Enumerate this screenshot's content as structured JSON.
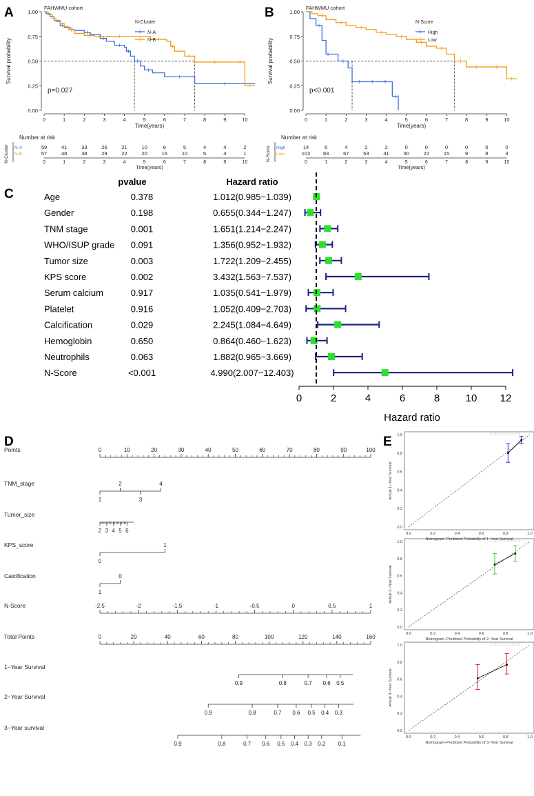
{
  "panel_labels": {
    "A": "A",
    "B": "B",
    "C": "C",
    "D": "D",
    "E": "E"
  },
  "chart_data": [
    {
      "panel": "A",
      "type": "line",
      "subtype": "kaplan-meier",
      "title": "FAHWMU cohort",
      "xlabel": "Time(years)",
      "ylabel": "Survival probability",
      "xlim": [
        0,
        10.5
      ],
      "ylim": [
        0,
        1
      ],
      "xticks": [
        "0",
        "1",
        "2",
        "3",
        "4",
        "5",
        "6",
        "7",
        "8",
        "9",
        "10"
      ],
      "yticks": [
        "0.00",
        "0.25",
        "0.50",
        "0.75",
        "1.00"
      ],
      "legend_title": "N-Cluster",
      "pvalue_text": "p=0.027",
      "median_lines": [
        4.5,
        7.5
      ],
      "series": [
        {
          "name": "N-A",
          "color": "#3A6FD8",
          "x": [
            0,
            0.1,
            0.3,
            0.5,
            0.8,
            1.0,
            1.3,
            1.5,
            2.0,
            2.3,
            2.8,
            3.1,
            3.5,
            4.0,
            4.1,
            4.3,
            4.5,
            4.8,
            5.0,
            5.4,
            6.0,
            7.5,
            10.5
          ],
          "y": [
            1.0,
            0.98,
            0.95,
            0.91,
            0.86,
            0.84,
            0.82,
            0.81,
            0.79,
            0.77,
            0.73,
            0.7,
            0.66,
            0.64,
            0.6,
            0.55,
            0.5,
            0.45,
            0.41,
            0.38,
            0.34,
            0.27,
            0.27
          ]
        },
        {
          "name": "N-B",
          "color": "#F39C1A",
          "x": [
            0,
            0.2,
            0.4,
            0.6,
            0.8,
            1.0,
            1.2,
            1.5,
            2.0,
            2.5,
            3.0,
            4.5,
            5.3,
            6.1,
            6.3,
            6.5,
            7.0,
            7.5,
            9.5,
            10.0,
            10.5
          ],
          "y": [
            1.0,
            0.97,
            0.93,
            0.9,
            0.88,
            0.85,
            0.82,
            0.78,
            0.76,
            0.75,
            0.75,
            0.75,
            0.72,
            0.7,
            0.65,
            0.6,
            0.55,
            0.49,
            0.49,
            0.25,
            0.25
          ]
        }
      ],
      "risk_table": {
        "title": "Number at risk",
        "ylabel": "N-Cluster",
        "xlabel": "Time(years)",
        "times": [
          "0",
          "1",
          "2",
          "3",
          "4",
          "5",
          "6",
          "7",
          "8",
          "9",
          "10"
        ],
        "rows": [
          {
            "label": "N-A",
            "values": [
              "59",
              "41",
              "33",
              "26",
              "21",
              "10",
              "6",
              "5",
              "4",
              "4",
              "2"
            ]
          },
          {
            "label": "N-B",
            "values": [
              "57",
              "48",
              "38",
              "29",
              "22",
              "20",
              "16",
              "10",
              "5",
              "4",
              "1"
            ]
          }
        ]
      }
    },
    {
      "panel": "B",
      "type": "line",
      "subtype": "kaplan-meier",
      "title": "FAHWMU cohort",
      "xlabel": "Time(years)",
      "ylabel": "Survival probability",
      "xlim": [
        0,
        10.5
      ],
      "ylim": [
        0,
        1
      ],
      "xticks": [
        "0",
        "1",
        "2",
        "3",
        "4",
        "5",
        "6",
        "7",
        "8",
        "9",
        "10"
      ],
      "yticks": [
        "0.00",
        "0.25",
        "0.50",
        "0.75",
        "1.00"
      ],
      "legend_title": "N-Score",
      "pvalue_text": "p<0.001",
      "median_lines": [
        2.3,
        7.4
      ],
      "series": [
        {
          "name": "High",
          "color": "#3A6FD8",
          "x": [
            0,
            0.2,
            0.5,
            0.8,
            1.0,
            1.2,
            1.6,
            2.1,
            2.3,
            3.0,
            3.6,
            4.3,
            4.6,
            4.6
          ],
          "y": [
            1.0,
            0.93,
            0.86,
            0.71,
            0.57,
            0.57,
            0.5,
            0.43,
            0.29,
            0.29,
            0.29,
            0.14,
            0.14,
            0.0
          ]
        },
        {
          "name": "Low",
          "color": "#F39C1A",
          "x": [
            0,
            0.3,
            0.6,
            1.0,
            1.5,
            2.0,
            2.5,
            3.0,
            3.5,
            4.0,
            4.5,
            5.0,
            5.5,
            6.0,
            6.5,
            7.0,
            7.4,
            8.0,
            9.0,
            10.0,
            10.5
          ],
          "y": [
            1.0,
            0.98,
            0.96,
            0.92,
            0.89,
            0.86,
            0.84,
            0.82,
            0.79,
            0.77,
            0.75,
            0.72,
            0.69,
            0.65,
            0.63,
            0.57,
            0.5,
            0.44,
            0.44,
            0.32,
            0.32
          ]
        }
      ],
      "risk_table": {
        "title": "Number at risk",
        "ylabel": "N-Score",
        "xlabel": "Time(years)",
        "times": [
          "0",
          "1",
          "2",
          "3",
          "4",
          "5",
          "6",
          "7",
          "8",
          "9",
          "10"
        ],
        "rows": [
          {
            "label": "High",
            "values": [
              "14",
              "6",
              "4",
              "2",
              "2",
              "0",
              "0",
              "0",
              "0",
              "0",
              "0"
            ]
          },
          {
            "label": "Low",
            "values": [
              "102",
              "83",
              "67",
              "53",
              "41",
              "30",
              "22",
              "15",
              "9",
              "8",
              "3"
            ]
          }
        ]
      }
    },
    {
      "panel": "C",
      "type": "forest",
      "col_pvalue": "pvalue",
      "col_hr": "Hazard ratio",
      "xlabel": "Hazard ratio",
      "xlim": [
        0,
        12
      ],
      "xticks": [
        "0",
        "2",
        "4",
        "6",
        "8",
        "10",
        "12"
      ],
      "ref_line": 1,
      "rows": [
        {
          "label": "Age",
          "pvalue": "0.378",
          "hr_text": "1.012(0.985−1.039)",
          "hr": 1.012,
          "lo": 0.985,
          "hi": 1.039
        },
        {
          "label": "Gender",
          "pvalue": "0.198",
          "hr_text": "0.655(0.344−1.247)",
          "hr": 0.655,
          "lo": 0.344,
          "hi": 1.247
        },
        {
          "label": "TNM stage",
          "pvalue": "0.001",
          "hr_text": "1.651(1.214−2.247)",
          "hr": 1.651,
          "lo": 1.214,
          "hi": 2.247
        },
        {
          "label": "WHO/ISUP grade",
          "pvalue": "0.091",
          "hr_text": "1.356(0.952−1.932)",
          "hr": 1.356,
          "lo": 0.952,
          "hi": 1.932
        },
        {
          "label": "Tumor size",
          "pvalue": "0.003",
          "hr_text": "1.722(1.209−2.455)",
          "hr": 1.722,
          "lo": 1.209,
          "hi": 2.455
        },
        {
          "label": "KPS score",
          "pvalue": "0.002",
          "hr_text": "3.432(1.563−7.537)",
          "hr": 3.432,
          "lo": 1.563,
          "hi": 7.537
        },
        {
          "label": "Serum calcium",
          "pvalue": "0.917",
          "hr_text": "1.035(0.541−1.979)",
          "hr": 1.035,
          "lo": 0.541,
          "hi": 1.979
        },
        {
          "label": "Platelet",
          "pvalue": "0.916",
          "hr_text": "1.052(0.409−2.703)",
          "hr": 1.052,
          "lo": 0.409,
          "hi": 2.703
        },
        {
          "label": "Calcification",
          "pvalue": "0.029",
          "hr_text": "2.245(1.084−4.649)",
          "hr": 2.245,
          "lo": 1.084,
          "hi": 4.649
        },
        {
          "label": "Hemoglobin",
          "pvalue": "0.650",
          "hr_text": "0.864(0.460−1.623)",
          "hr": 0.864,
          "lo": 0.46,
          "hi": 1.623
        },
        {
          "label": "Neutrophils",
          "pvalue": "0.063",
          "hr_text": "1.882(0.965−3.669)",
          "hr": 1.882,
          "lo": 0.965,
          "hi": 3.669
        },
        {
          "label": "N-Score",
          "pvalue": "<0.001",
          "hr_text": "4.990(2.007−12.403)",
          "hr": 4.99,
          "lo": 2.007,
          "hi": 12.403
        }
      ]
    },
    {
      "panel": "D",
      "type": "nomogram",
      "rows": [
        {
          "label": "Points",
          "domain": [
            0,
            100
          ],
          "ticks": [
            {
              "v": 0,
              "t": "0"
            },
            {
              "v": 10,
              "t": "10"
            },
            {
              "v": 20,
              "t": "20"
            },
            {
              "v": 30,
              "t": "30"
            },
            {
              "v": 40,
              "t": "40"
            },
            {
              "v": 50,
              "t": "50"
            },
            {
              "v": 60,
              "t": "60"
            },
            {
              "v": 70,
              "t": "70"
            },
            {
              "v": 80,
              "t": "80"
            },
            {
              "v": 90,
              "t": "90"
            },
            {
              "v": 100,
              "t": "100"
            }
          ],
          "minor": true
        },
        {
          "label": "TNM_stage",
          "domain": [
            0,
            100
          ],
          "line": [
            0,
            22.5
          ],
          "ticks": [
            {
              "v": 0,
              "t": "1",
              "side": "below"
            },
            {
              "v": 7.5,
              "t": "2",
              "side": "above"
            },
            {
              "v": 15,
              "t": "3",
              "side": "below"
            },
            {
              "v": 22.5,
              "t": "4",
              "side": "above"
            }
          ]
        },
        {
          "label": "Tumor_size",
          "domain": [
            0,
            100
          ],
          "line": [
            0,
            12.5
          ],
          "ticks": [
            {
              "v": 0,
              "t": "2",
              "side": "below"
            },
            {
              "v": 2.5,
              "t": "3",
              "side": "below"
            },
            {
              "v": 5,
              "t": "4",
              "side": "below"
            },
            {
              "v": 7.5,
              "t": "5",
              "side": "below"
            },
            {
              "v": 10,
              "t": "6",
              "side": "below"
            }
          ],
          "minor": true
        },
        {
          "label": "KPS_score",
          "domain": [
            0,
            100
          ],
          "line": [
            0,
            24
          ],
          "ticks": [
            {
              "v": 0,
              "t": "0",
              "side": "below"
            },
            {
              "v": 24,
              "t": "1",
              "side": "above"
            }
          ]
        },
        {
          "label": "Calcification",
          "domain": [
            0,
            100
          ],
          "line": [
            0,
            7.5
          ],
          "ticks": [
            {
              "v": 0,
              "t": "1",
              "side": "below"
            },
            {
              "v": 7.5,
              "t": "0",
              "side": "above"
            }
          ]
        },
        {
          "label": "N-Score",
          "domain": [
            -2.5,
            1
          ],
          "ticks": [
            {
              "v": -2.5,
              "t": "-2.5"
            },
            {
              "v": -2,
              "t": "-2"
            },
            {
              "v": -1.5,
              "t": "-1.5"
            },
            {
              "v": -1,
              "t": "-1"
            },
            {
              "v": -0.5,
              "t": "-0.5"
            },
            {
              "v": 0,
              "t": "0"
            },
            {
              "v": 0.5,
              "t": "0.5"
            },
            {
              "v": 1,
              "t": "1"
            }
          ],
          "minor": true
        },
        {
          "label": "Total Points",
          "domain": [
            0,
            160
          ],
          "ticks": [
            {
              "v": 0,
              "t": "0"
            },
            {
              "v": 20,
              "t": "20"
            },
            {
              "v": 40,
              "t": "40"
            },
            {
              "v": 60,
              "t": "60"
            },
            {
              "v": 80,
              "t": "80"
            },
            {
              "v": 100,
              "t": "100"
            },
            {
              "v": 120,
              "t": "120"
            },
            {
              "v": 140,
              "t": "140"
            },
            {
              "v": 160,
              "t": "160"
            }
          ],
          "minor": true
        },
        {
          "label": "1−Year Survival",
          "domain": [
            0,
            160
          ],
          "line": [
            82,
            149.5
          ],
          "ticks": [
            {
              "v": 82,
              "t": "0.9"
            },
            {
              "v": 108,
              "t": "0.8"
            },
            {
              "v": 123,
              "t": "0.7"
            },
            {
              "v": 134,
              "t": "0.6"
            },
            {
              "v": 142,
              "t": "0.5"
            }
          ]
        },
        {
          "label": "2−Year Survival",
          "domain": [
            0,
            160
          ],
          "line": [
            64,
            150
          ],
          "ticks": [
            {
              "v": 64,
              "t": "0.9"
            },
            {
              "v": 90,
              "t": "0.8"
            },
            {
              "v": 105,
              "t": "0.7"
            },
            {
              "v": 116,
              "t": "0.6"
            },
            {
              "v": 125,
              "t": "0.5"
            },
            {
              "v": 133,
              "t": "0.4"
            },
            {
              "v": 141,
              "t": "0.3"
            }
          ]
        },
        {
          "label": "3−Year survival",
          "domain": [
            0,
            160
          ],
          "line": [
            46,
            154
          ],
          "ticks": [
            {
              "v": 46,
              "t": "0.9"
            },
            {
              "v": 72,
              "t": "0.8"
            },
            {
              "v": 87,
              "t": "0.7"
            },
            {
              "v": 98,
              "t": "0.6"
            },
            {
              "v": 107,
              "t": "0.5"
            },
            {
              "v": 115,
              "t": "0.4"
            },
            {
              "v": 123,
              "t": "0.3"
            },
            {
              "v": 131,
              "t": "0.2"
            },
            {
              "v": 143,
              "t": "0.1"
            }
          ]
        }
      ]
    },
    {
      "panel": "E",
      "type": "scatter",
      "subtype": "calibration",
      "plots": [
        {
          "xlabel": "Nomogram−Predicted Probability of 1−Year Survival",
          "ylabel": "Actual 1−Year Survival",
          "color": "#2A2AE0",
          "xlim": [
            0,
            1
          ],
          "ylim": [
            0,
            1
          ],
          "ticks": [
            "0.0",
            "0.2",
            "0.4",
            "0.6",
            "0.8",
            "1.0"
          ],
          "points": [
            {
              "x": 0.82,
              "y": 0.8,
              "lo": 0.7,
              "hi": 0.9
            },
            {
              "x": 0.93,
              "y": 0.94,
              "lo": 0.9,
              "hi": 0.98
            }
          ]
        },
        {
          "xlabel": "Nomogram−Predicted Probability of 2−Year Survival",
          "ylabel": "Actual 2−Year Survival",
          "color": "#33CC33",
          "xlim": [
            0,
            1
          ],
          "ylim": [
            0,
            1
          ],
          "ticks": [
            "0.0",
            "0.2",
            "0.4",
            "0.6",
            "0.8",
            "1.0"
          ],
          "points": [
            {
              "x": 0.71,
              "y": 0.73,
              "lo": 0.62,
              "hi": 0.86
            },
            {
              "x": 0.88,
              "y": 0.86,
              "lo": 0.77,
              "hi": 0.95
            }
          ]
        },
        {
          "xlabel": "Nomogram−Predicted Probability of 3−Year Survival",
          "ylabel": "Actual 3−Year Survival",
          "color": "#E02020",
          "xlim": [
            0,
            1
          ],
          "ylim": [
            0,
            1
          ],
          "ticks": [
            "0.0",
            "0.2",
            "0.4",
            "0.6",
            "0.8",
            "1.0"
          ],
          "points": [
            {
              "x": 0.57,
              "y": 0.61,
              "lo": 0.48,
              "hi": 0.77
            },
            {
              "x": 0.81,
              "y": 0.77,
              "lo": 0.66,
              "hi": 0.9
            }
          ]
        }
      ]
    }
  ]
}
